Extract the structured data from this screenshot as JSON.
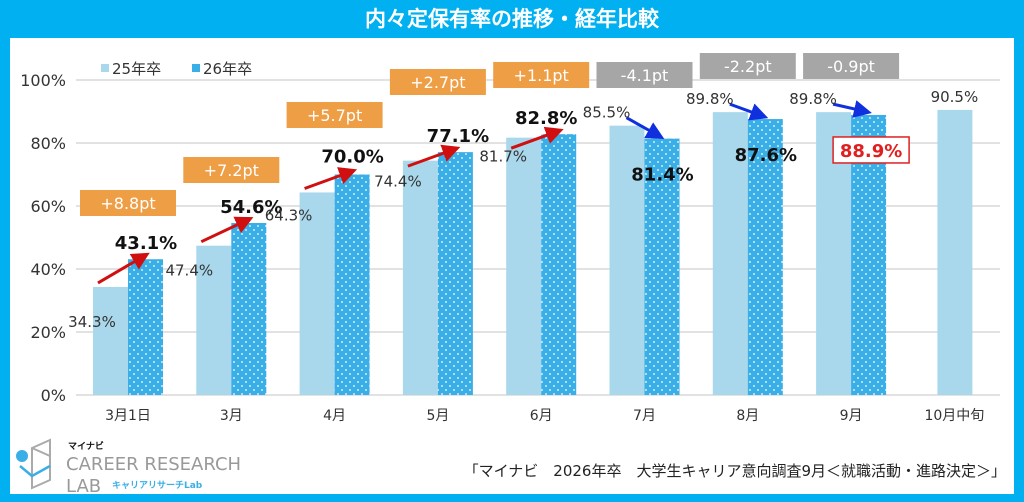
{
  "title": "内々定保有率の推移・経年比較",
  "source": "「マイナビ　2026年卒　大学生キャリア意向調査9月＜就職活動・進路決定＞」",
  "logo": {
    "brand": "マイナビ",
    "line1": "CAREER RESEARCH",
    "line2": "LAB",
    "sub": "キャリアリサーチLab"
  },
  "colors": {
    "frame": "#00B0F0",
    "series25": "#A9D8EC",
    "series26": "#3AAEE6",
    "up_box": "#EE9E45",
    "down_box": "#A6A6A6",
    "up_arrow": "#D01010",
    "down_arrow": "#1030E0",
    "highlight": "#E02020"
  },
  "chart_data": {
    "type": "bar",
    "categories": [
      "3月1日",
      "3月",
      "4月",
      "5月",
      "6月",
      "7月",
      "8月",
      "9月",
      "10月中旬"
    ],
    "series": [
      {
        "name": "25年卒",
        "values": [
          34.3,
          47.4,
          64.3,
          74.4,
          81.7,
          85.5,
          89.8,
          89.8,
          90.5
        ],
        "labels": [
          "34.3%",
          "47.4%",
          "64.3%",
          "74.4%",
          "81.7%",
          "85.5%",
          "89.8%",
          "89.8%",
          "90.5%"
        ]
      },
      {
        "name": "26年卒",
        "values": [
          43.1,
          54.6,
          70.0,
          77.1,
          82.8,
          81.4,
          87.6,
          88.9,
          null
        ],
        "labels": [
          "43.1%",
          "54.6%",
          "70.0%",
          "77.1%",
          "82.8%",
          "81.4%",
          "87.6%",
          "88.9%",
          ""
        ]
      }
    ],
    "differences": [
      "+8.8pt",
      "+7.2pt",
      "+5.7pt",
      "+2.7pt",
      "+1.1pt",
      "-4.1pt",
      "-2.2pt",
      "-0.9pt"
    ],
    "highlighted_label": "88.9%",
    "yticks": [
      "0%",
      "20%",
      "40%",
      "60%",
      "80%",
      "100%"
    ],
    "ylim": [
      0,
      100
    ],
    "grid": true,
    "legend": "top-left"
  }
}
